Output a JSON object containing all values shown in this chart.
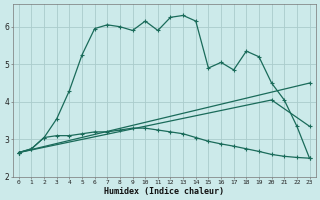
{
  "xlabel": "Humidex (Indice chaleur)",
  "bg_color": "#cceaea",
  "grid_color": "#aacccc",
  "line_color": "#1a6b5a",
  "xlim": [
    -0.5,
    23.5
  ],
  "ylim": [
    2.0,
    6.6
  ],
  "yticks": [
    2,
    3,
    4,
    5,
    6
  ],
  "xticks": [
    0,
    1,
    2,
    3,
    4,
    5,
    6,
    7,
    8,
    9,
    10,
    11,
    12,
    13,
    14,
    15,
    16,
    17,
    18,
    19,
    20,
    21,
    22,
    23
  ],
  "series1_x": [
    0,
    1,
    2,
    3,
    4,
    5,
    6,
    7,
    8,
    9,
    10,
    11,
    12,
    13,
    14,
    15,
    16,
    17,
    18,
    19,
    20,
    21,
    22,
    23
  ],
  "series1_y": [
    2.65,
    2.75,
    3.05,
    3.55,
    4.3,
    5.25,
    5.95,
    6.05,
    6.0,
    5.9,
    6.15,
    5.9,
    6.25,
    6.3,
    6.15,
    4.9,
    5.05,
    4.85,
    5.35,
    5.2,
    4.5,
    4.05,
    3.35,
    2.5
  ],
  "series2_x": [
    0,
    1,
    2,
    3,
    4,
    5,
    6,
    7,
    8,
    9,
    10,
    11,
    12,
    13,
    14,
    15,
    16,
    17,
    18,
    19,
    20,
    21,
    22,
    23
  ],
  "series2_y": [
    2.65,
    2.75,
    3.05,
    3.1,
    3.1,
    3.15,
    3.2,
    3.2,
    3.25,
    3.3,
    3.3,
    3.25,
    3.2,
    3.15,
    3.05,
    2.95,
    2.88,
    2.82,
    2.75,
    2.68,
    2.6,
    2.55,
    2.52,
    2.5
  ],
  "series3_x": [
    0,
    23
  ],
  "series3_y": [
    2.65,
    4.5
  ],
  "series4_x": [
    0,
    20,
    23
  ],
  "series4_y": [
    2.65,
    4.05,
    3.35
  ]
}
